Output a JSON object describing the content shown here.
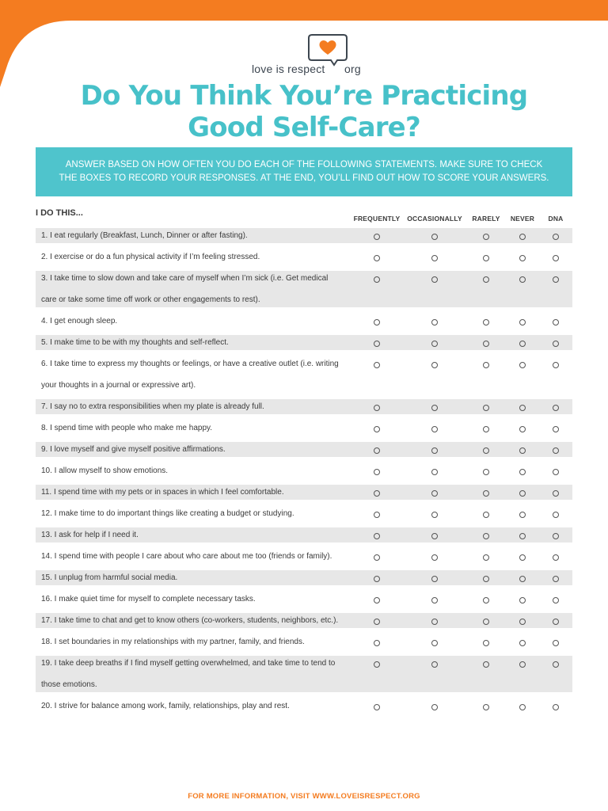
{
  "brand": {
    "logo_text": "love is respect",
    "logo_suffix": "org",
    "orange": "#f47c20",
    "teal": "#47c1c9"
  },
  "title": {
    "line1": "Do You Think You’re Practicing",
    "line2": "Good Self-Care?"
  },
  "banner": {
    "line1": "ANSWER  BASED ON HOW OFTEN YOU DO EACH OF THE FOLLOWING STATEMENTS. MAKE SURE TO CHECK",
    "line2": "THE BOXES TO RECORD YOUR RESPONSES. AT THE END, YOU’LL FIND OUT HOW TO SCORE YOUR ANSWERS."
  },
  "section_label": "I DO THIS...",
  "columns": [
    "FREQUENTLY",
    "OCCASIONALLY",
    "RARELY",
    "NEVER",
    "DNA"
  ],
  "statements": [
    {
      "line1": "1.   I eat regularly (Breakfast, Lunch, Dinner or after fasting).",
      "line2": ""
    },
    {
      "line1": "2.  I exercise or do a fun physical activity if I’m feeling stressed.",
      "line2": ""
    },
    {
      "line1": "3.  I take time to slow down and take care of myself when I’m sick (i.e. Get medical",
      "line2": "care or take some time off work or other engagements to rest)."
    },
    {
      "line1": "4.  I get enough sleep.",
      "line2": ""
    },
    {
      "line1": "5.  I make time to be with my thoughts and self-reflect.",
      "line2": ""
    },
    {
      "line1": "6.  I take time to express my thoughts or feelings, or have a creative outlet (i.e. writing",
      "line2": "your thoughts in a journal or expressive art)."
    },
    {
      "line1": "7.   I say no to extra responsibilities when my plate is already full.",
      "line2": ""
    },
    {
      "line1": "8.  I spend time with people who make me happy.",
      "line2": ""
    },
    {
      "line1": "9.  I love myself and give myself positive affirmations.",
      "line2": ""
    },
    {
      "line1": "10.  I allow myself to show emotions.",
      "line2": ""
    },
    {
      "line1": "11.   I spend time with my pets or in spaces in which I feel comfortable.",
      "line2": ""
    },
    {
      "line1": "12.  I make time to do important things like creating a budget or studying.",
      "line2": ""
    },
    {
      "line1": "13.  I ask for help if I need it.",
      "line2": ""
    },
    {
      "line1": "14.  I spend time with people I care about who care about me too (friends or family).",
      "line2": ""
    },
    {
      "line1": "15.  I unplug from harmful social media.",
      "line2": ""
    },
    {
      "line1": "16.  I make quiet time for myself to complete necessary tasks.",
      "line2": ""
    },
    {
      "line1": "17.   I take time to chat and get to know others (co-workers, students, neighbors, etc.).",
      "line2": ""
    },
    {
      "line1": "18.  I set boundaries in my relationships with my partner, family, and friends.",
      "line2": ""
    },
    {
      "line1": "19.  I take deep breaths if I find myself getting overwhelmed, and take time to tend to",
      "line2": "those emotions."
    },
    {
      "line1": "20. I strive for balance among work, family, relationships, play and rest.",
      "line2": ""
    }
  ],
  "footer": "FOR MORE INFORMATION, VISIT WWW.LOVEISRESPECT.ORG"
}
